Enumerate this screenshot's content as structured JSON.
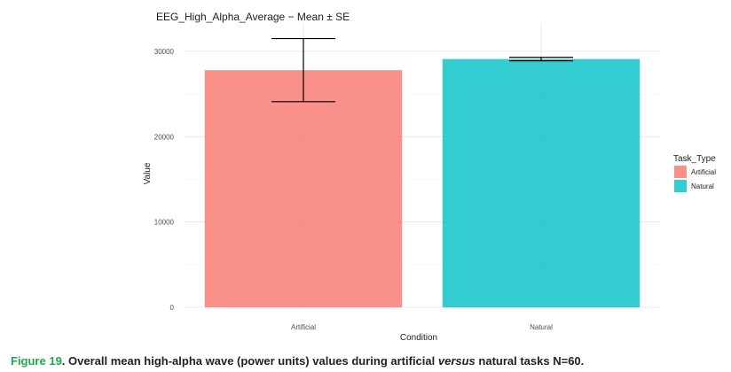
{
  "chart_data": {
    "type": "bar",
    "title": "EEG_High_Alpha_Average − Mean ± SE",
    "xlabel": "Condition",
    "ylabel": "Value",
    "categories": [
      "Artificial",
      "Natural"
    ],
    "values": [
      27800,
      29100
    ],
    "error_low": [
      24100,
      28900
    ],
    "error_high": [
      31500,
      29300
    ],
    "colors": [
      "#f8766d",
      "#00bfc4"
    ],
    "ylim": [
      0,
      32500
    ],
    "yticks": [
      0,
      10000,
      20000,
      30000
    ],
    "grid": true,
    "legend": {
      "title": "Task_Type",
      "position": "right",
      "items": [
        {
          "label": "Artificial",
          "color": "#f8766d"
        },
        {
          "label": "Natural",
          "color": "#00bfc4"
        }
      ]
    }
  },
  "caption": {
    "figure_number": "Figure 19",
    "text_before": ". Overall mean high-alpha wave (power units) values during artificial ",
    "emphasis": "versus",
    "text_after": " natural tasks N=60."
  }
}
